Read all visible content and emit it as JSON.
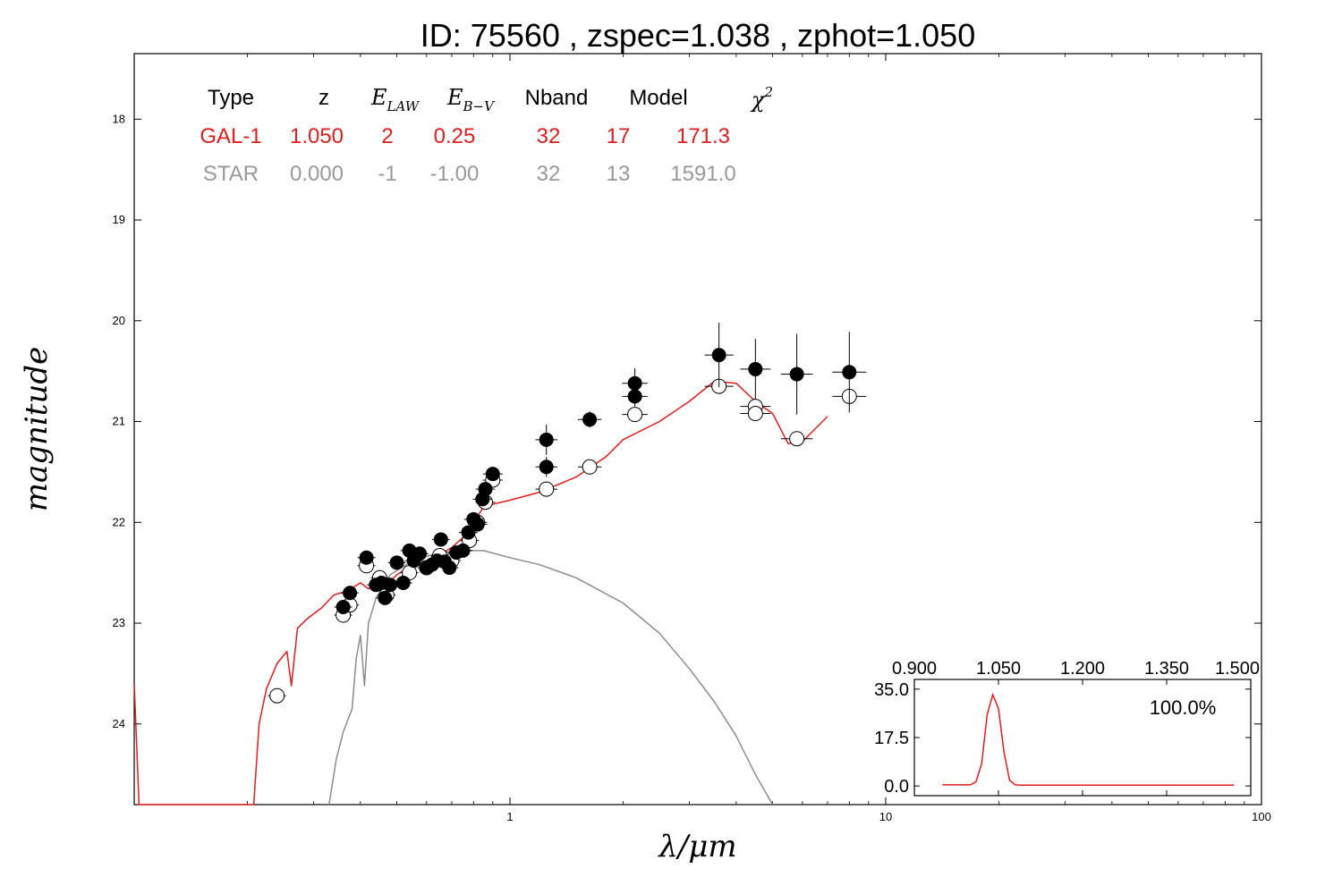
{
  "title": "ID:  75560 , zspec=1.038 , zphot=1.050",
  "colors": {
    "galaxy": "#dd1f1f",
    "star": "#8c8c8c",
    "axis": "#000000"
  },
  "table": {
    "headers": [
      "Type",
      "z",
      "E",
      "E",
      "Nband",
      "Model",
      "χ"
    ],
    "header_subs": [
      "LAW",
      "B−V"
    ],
    "header_sup": "2",
    "rows": [
      {
        "name": "gal",
        "color": "#dd1f1f",
        "cells": [
          "GAL-1",
          "1.050",
          "2",
          "0.25",
          "32",
          "17",
          "171.3"
        ]
      },
      {
        "name": "star",
        "color": "#999999",
        "cells": [
          "STAR",
          "0.000",
          "-1",
          "-1.00",
          "32",
          "13",
          "1591.0"
        ]
      }
    ]
  },
  "chart_data": [
    {
      "type": "scatter",
      "xlabel": "λ/μm",
      "ylabel": "magnitude",
      "xscale": "log",
      "xlim": [
        0.1,
        100
      ],
      "ylim": [
        24.8,
        17.35
      ],
      "xticks": [
        1,
        10,
        100
      ],
      "xtick_labels": [
        "1",
        "10",
        "100"
      ],
      "yticks": [
        18,
        19,
        20,
        21,
        22,
        23,
        24
      ],
      "ytick_labels": [
        "18",
        "19",
        "20",
        "21",
        "22",
        "23",
        "24"
      ],
      "observed_points": [
        {
          "x": 0.36,
          "y": 22.84,
          "yerr": 0.04
        },
        {
          "x": 0.375,
          "y": 22.7,
          "yerr": 0.04
        },
        {
          "x": 0.415,
          "y": 22.35,
          "yerr": 0.03
        },
        {
          "x": 0.44,
          "y": 22.62,
          "yerr": 0.03
        },
        {
          "x": 0.455,
          "y": 22.6,
          "yerr": 0.03
        },
        {
          "x": 0.465,
          "y": 22.75,
          "yerr": 0.03
        },
        {
          "x": 0.48,
          "y": 22.62,
          "yerr": 0.03
        },
        {
          "x": 0.5,
          "y": 22.4,
          "yerr": 0.03
        },
        {
          "x": 0.52,
          "y": 22.6,
          "yerr": 0.03
        },
        {
          "x": 0.54,
          "y": 22.28,
          "yerr": 0.03
        },
        {
          "x": 0.555,
          "y": 22.38,
          "yerr": 0.03
        },
        {
          "x": 0.575,
          "y": 22.31,
          "yerr": 0.03
        },
        {
          "x": 0.6,
          "y": 22.45,
          "yerr": 0.03
        },
        {
          "x": 0.62,
          "y": 22.42,
          "yerr": 0.03
        },
        {
          "x": 0.64,
          "y": 22.38,
          "yerr": 0.03
        },
        {
          "x": 0.655,
          "y": 22.17,
          "yerr": 0.03
        },
        {
          "x": 0.67,
          "y": 22.39,
          "yerr": 0.03
        },
        {
          "x": 0.69,
          "y": 22.45,
          "yerr": 0.03
        },
        {
          "x": 0.72,
          "y": 22.3,
          "yerr": 0.03
        },
        {
          "x": 0.75,
          "y": 22.28,
          "yerr": 0.03
        },
        {
          "x": 0.775,
          "y": 22.1,
          "yerr": 0.03
        },
        {
          "x": 0.8,
          "y": 21.97,
          "yerr": 0.03
        },
        {
          "x": 0.82,
          "y": 22.02,
          "yerr": 0.03
        },
        {
          "x": 0.845,
          "y": 21.77,
          "yerr": 0.03
        },
        {
          "x": 0.86,
          "y": 21.67,
          "yerr": 0.03
        },
        {
          "x": 0.9,
          "y": 21.52,
          "yerr": 0.03
        },
        {
          "x": 1.25,
          "y": 21.45,
          "yerr": 0.1
        },
        {
          "x": 1.25,
          "y": 21.18,
          "yerr": 0.15
        },
        {
          "x": 1.63,
          "y": 20.98,
          "yerr": 0.08
        },
        {
          "x": 2.15,
          "y": 20.62,
          "yerr": 0.15
        },
        {
          "x": 2.15,
          "y": 20.75,
          "yerr": 0.1
        },
        {
          "x": 3.6,
          "y": 20.34,
          "yerr": 0.32
        },
        {
          "x": 4.5,
          "y": 20.48,
          "yerr": 0.3
        },
        {
          "x": 5.8,
          "y": 20.53,
          "yerr": 0.4
        },
        {
          "x": 8.0,
          "y": 20.51,
          "yerr": 0.4
        }
      ],
      "model_points": [
        {
          "x": 0.24,
          "y": 23.72
        },
        {
          "x": 0.36,
          "y": 22.92
        },
        {
          "x": 0.375,
          "y": 22.82
        },
        {
          "x": 0.415,
          "y": 22.43
        },
        {
          "x": 0.45,
          "y": 22.55
        },
        {
          "x": 0.47,
          "y": 22.72
        },
        {
          "x": 0.54,
          "y": 22.5
        },
        {
          "x": 0.6,
          "y": 22.45
        },
        {
          "x": 0.65,
          "y": 22.33
        },
        {
          "x": 0.7,
          "y": 22.38
        },
        {
          "x": 0.78,
          "y": 22.18
        },
        {
          "x": 0.82,
          "y": 22.0
        },
        {
          "x": 0.86,
          "y": 21.8
        },
        {
          "x": 0.9,
          "y": 21.58
        },
        {
          "x": 1.25,
          "y": 21.67
        },
        {
          "x": 1.63,
          "y": 21.45
        },
        {
          "x": 2.15,
          "y": 20.93
        },
        {
          "x": 3.6,
          "y": 20.65
        },
        {
          "x": 4.5,
          "y": 20.85
        },
        {
          "x": 4.5,
          "y": 20.92
        },
        {
          "x": 5.8,
          "y": 21.17
        },
        {
          "x": 8.0,
          "y": 20.75
        }
      ],
      "galaxy_model_curve": [
        [
          0.1,
          23.6
        ],
        [
          0.103,
          24.8
        ],
        [
          0.208,
          24.8
        ],
        [
          0.215,
          24.0
        ],
        [
          0.225,
          23.65
        ],
        [
          0.24,
          23.4
        ],
        [
          0.255,
          23.28
        ],
        [
          0.262,
          23.62
        ],
        [
          0.272,
          23.05
        ],
        [
          0.29,
          22.95
        ],
        [
          0.315,
          22.85
        ],
        [
          0.34,
          22.72
        ],
        [
          0.37,
          22.68
        ],
        [
          0.4,
          22.6
        ],
        [
          0.42,
          22.66
        ],
        [
          0.44,
          22.6
        ],
        [
          0.46,
          22.64
        ],
        [
          0.5,
          22.52
        ],
        [
          0.55,
          22.42
        ],
        [
          0.6,
          22.4
        ],
        [
          0.65,
          22.32
        ],
        [
          0.7,
          22.25
        ],
        [
          0.75,
          22.15
        ],
        [
          0.8,
          22.0
        ],
        [
          0.85,
          21.85
        ],
        [
          0.9,
          21.82
        ],
        [
          1.0,
          21.78
        ],
        [
          1.2,
          21.7
        ],
        [
          1.5,
          21.55
        ],
        [
          1.8,
          21.35
        ],
        [
          2.0,
          21.18
        ],
        [
          2.5,
          21.0
        ],
        [
          3.0,
          20.8
        ],
        [
          3.5,
          20.6
        ],
        [
          4.0,
          20.62
        ],
        [
          4.5,
          20.8
        ],
        [
          5.0,
          20.92
        ],
        [
          5.5,
          21.22
        ],
        [
          6.0,
          21.2
        ],
        [
          7.0,
          20.95
        ]
      ],
      "star_model_curve": [
        [
          0.33,
          24.8
        ],
        [
          0.345,
          24.35
        ],
        [
          0.36,
          24.08
        ],
        [
          0.38,
          23.85
        ],
        [
          0.39,
          23.35
        ],
        [
          0.4,
          23.12
        ],
        [
          0.41,
          23.62
        ],
        [
          0.42,
          23.0
        ],
        [
          0.44,
          22.75
        ],
        [
          0.48,
          22.52
        ],
        [
          0.55,
          22.38
        ],
        [
          0.65,
          22.3
        ],
        [
          0.75,
          22.28
        ],
        [
          0.85,
          22.28
        ],
        [
          1.0,
          22.35
        ],
        [
          1.2,
          22.42
        ],
        [
          1.5,
          22.55
        ],
        [
          2.0,
          22.8
        ],
        [
          2.5,
          23.1
        ],
        [
          3.0,
          23.45
        ],
        [
          3.5,
          23.78
        ],
        [
          4.0,
          24.12
        ],
        [
          4.5,
          24.5
        ],
        [
          5.0,
          24.8
        ]
      ],
      "galaxy_table_label": "GAL-1",
      "star_table_label": "STAR"
    },
    {
      "type": "line",
      "xlim": [
        0.9,
        1.5
      ],
      "ylim": [
        -3.5,
        38.5
      ],
      "xticks": [
        0.9,
        1.05,
        1.2,
        1.35,
        1.5
      ],
      "xtick_labels": [
        "0.900",
        "1.050",
        "1.200",
        "1.350",
        "1.500"
      ],
      "yticks": [
        0,
        17.5,
        35.0
      ],
      "ytick_labels": [
        "0.0",
        "17.5",
        "35.0"
      ],
      "annotation": "100.0%",
      "x": [
        0.95,
        1.0,
        1.01,
        1.02,
        1.03,
        1.04,
        1.05,
        1.06,
        1.07,
        1.08,
        1.09,
        1.1,
        1.2,
        1.3,
        1.4,
        1.47
      ],
      "y": [
        0.4,
        0.4,
        1.5,
        8,
        26,
        33,
        28,
        12,
        2,
        0.4,
        0.3,
        0.3,
        0.3,
        0.3,
        0.3,
        0.3
      ]
    }
  ]
}
